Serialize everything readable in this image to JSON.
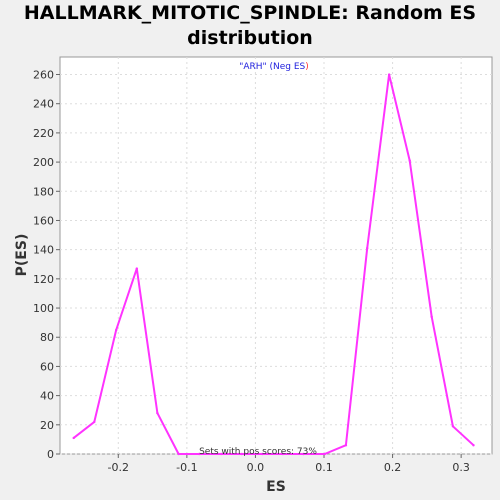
{
  "chart_data": {
    "type": "line",
    "title_line1": "HALLMARK_MITOTIC_SPINDLE: Random ES",
    "title_line2": "distribution",
    "xlabel": "ES",
    "ylabel": "P(ES)",
    "xlim": [
      -0.285,
      0.345
    ],
    "ylim": [
      0,
      272
    ],
    "x_ticks": [
      -0.2,
      -0.1,
      0.0,
      0.1,
      0.2,
      0.3
    ],
    "x_tick_labels": [
      "-0.2",
      "-0.1",
      "0.0",
      "0.1",
      "0.2",
      "0.3"
    ],
    "y_ticks": [
      0,
      20,
      40,
      60,
      80,
      100,
      120,
      140,
      160,
      180,
      200,
      220,
      240,
      260
    ],
    "grid": true,
    "series": [
      {
        "color": "#ff33ff",
        "x": [
          -0.265,
          -0.235,
          -0.203,
          -0.173,
          -0.143,
          -0.112,
          -0.082,
          -0.05,
          -0.02,
          0.01,
          0.04,
          0.07,
          0.101,
          0.132,
          0.163,
          0.195,
          0.225,
          0.257,
          0.288,
          0.318
        ],
        "y": [
          11,
          22,
          85,
          127,
          28,
          0,
          0,
          0,
          0,
          0,
          0,
          0,
          0,
          6,
          141,
          260,
          201,
          94,
          19,
          6
        ]
      }
    ],
    "annotation": {
      "part1": "\"ARH\" (Neg ES",
      "part1_color": "#2222dd",
      "part2": ")",
      "part2_color": "#ff3333"
    },
    "footer_note": "Sets with pos scores: 73%"
  }
}
